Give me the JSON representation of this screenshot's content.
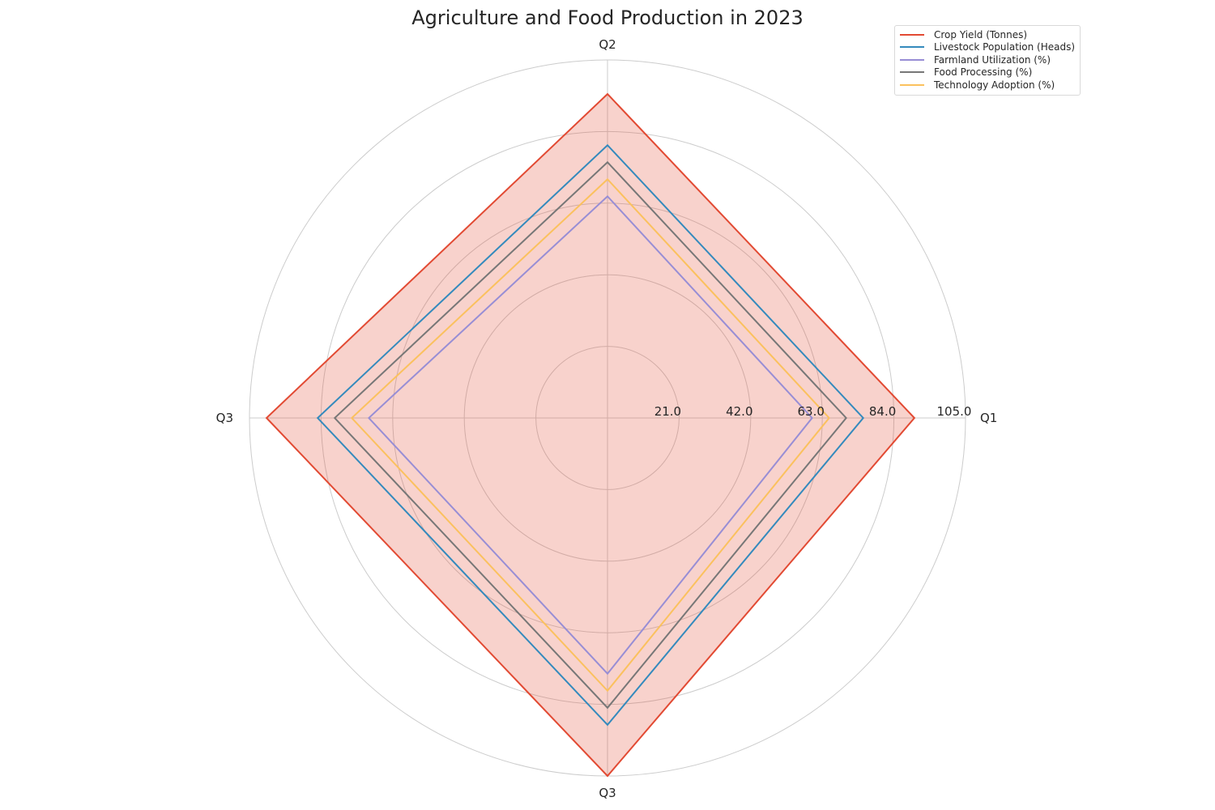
{
  "chart_data": {
    "type": "radar",
    "title": "Agriculture and Food Production in 2023",
    "categories": [
      "Q1",
      "Q2",
      "Q3",
      "Q3"
    ],
    "rlim": [
      0,
      105
    ],
    "radial_ticks": [
      "21.0",
      "42.0",
      "63.0",
      "84.0",
      "105.0"
    ],
    "radial_tick_values": [
      21,
      42,
      63,
      84,
      105
    ],
    "grid": true,
    "legend_position": "top-right",
    "series": [
      {
        "name": "Crop Yield (Tonnes)",
        "values": [
          90,
          95,
          100,
          105
        ],
        "color": "#e24a33",
        "fill": true
      },
      {
        "name": "Livestock Population (Heads)",
        "values": [
          75,
          80,
          85,
          90
        ],
        "color": "#348abd",
        "fill": false
      },
      {
        "name": "Farmland Utilization (%)",
        "values": [
          60,
          65,
          70,
          75
        ],
        "color": "#988ed5",
        "fill": false
      },
      {
        "name": "Food Processing (%)",
        "values": [
          70,
          75,
          80,
          85
        ],
        "color": "#777777",
        "fill": false
      },
      {
        "name": "Technology Adoption (%)",
        "values": [
          65,
          70,
          75,
          80
        ],
        "color": "#fbc15e",
        "fill": false
      }
    ],
    "fill_color": "#e24a33"
  }
}
